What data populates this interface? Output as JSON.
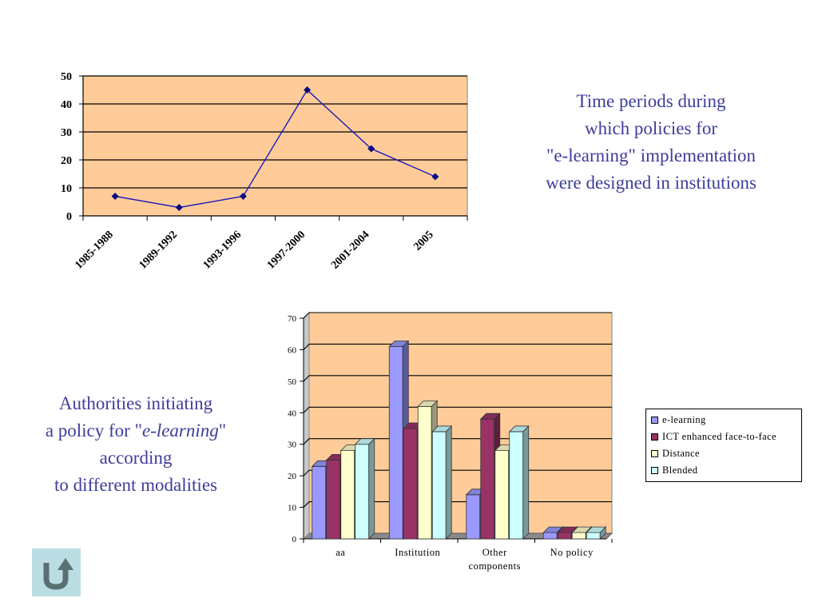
{
  "chart_data": [
    {
      "type": "line",
      "categories": [
        "1985-1988",
        "1989-1992",
        "1993-1996",
        "1997-2000",
        "2001-2004",
        "2005"
      ],
      "values": [
        7,
        3,
        7,
        45,
        24,
        14
      ],
      "ylim": [
        0,
        50
      ],
      "yticks": [
        "0",
        "10",
        "20",
        "30",
        "40",
        "50"
      ],
      "grid": true,
      "colors": {
        "line": "#1a1ab8",
        "plot_bg": "#ffcc99"
      }
    },
    {
      "type": "bar",
      "categories": [
        "aa",
        "Institution",
        "Other components",
        "No policy"
      ],
      "category_lines": [
        [
          "aa"
        ],
        [
          "Institution"
        ],
        [
          "Other",
          "components"
        ],
        [
          "No policy"
        ]
      ],
      "series": [
        {
          "name": "e-learning",
          "values": [
            23,
            61,
            14,
            2
          ]
        },
        {
          "name": "ICT enhanced face-to-face",
          "values": [
            25,
            35,
            38,
            2
          ]
        },
        {
          "name": "Distance",
          "values": [
            28,
            42,
            28,
            2
          ]
        },
        {
          "name": "Blended",
          "values": [
            30,
            34,
            34,
            2
          ]
        }
      ],
      "ylim": [
        0,
        70
      ],
      "yticks": [
        "0",
        "10",
        "20",
        "30",
        "40",
        "50",
        "60",
        "70"
      ],
      "grid": true,
      "legend": "right",
      "colors": {
        "series": [
          "#9999ff",
          "#993366",
          "#ffffcc",
          "#ccffff"
        ],
        "plot_bg": "#ffcc99"
      }
    }
  ],
  "captions": {
    "top": [
      "Time periods during",
      "which policies for",
      "\"e-learning\" implementation",
      "were designed in institutions"
    ],
    "left": {
      "line1": "Authorities initiating",
      "line2_prefix": "a policy for \"",
      "line2_italic": "e-learning",
      "line2_suffix": "\"",
      "line3": "according",
      "line4": "to different modalities"
    }
  },
  "back_button": {
    "icon": "return-arrow-icon"
  }
}
